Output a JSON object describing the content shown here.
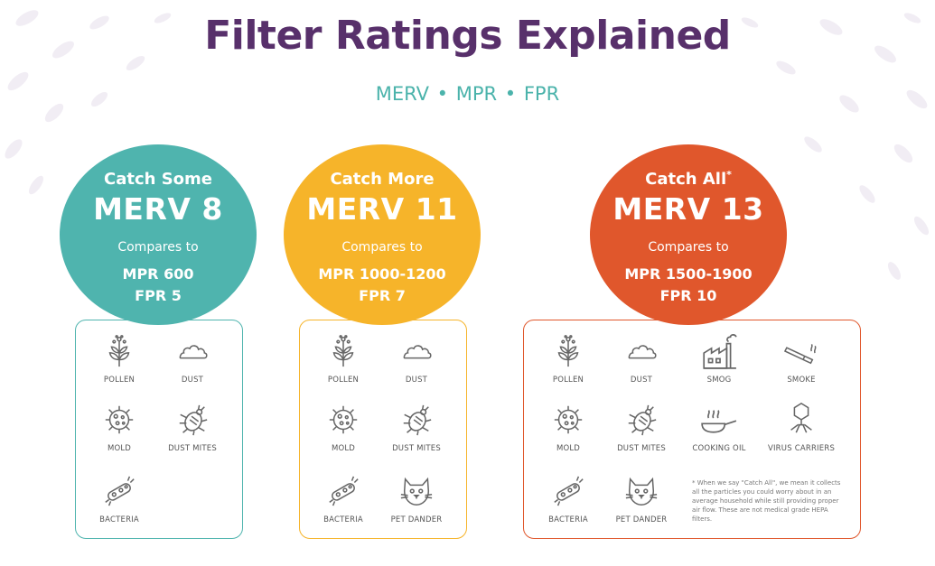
{
  "title": "Filter Ratings Explained",
  "subtitle": "MERV • MPR • FPR",
  "columns": [
    {
      "catch": "Catch Some",
      "merv": "MERV 8",
      "compares": "Compares to",
      "mpr": "MPR 600",
      "fpr": "FPR 5",
      "color": "#4fb4ae",
      "items": [
        "POLLEN",
        "DUST",
        "MOLD",
        "DUST MITES",
        "BACTERIA"
      ]
    },
    {
      "catch": "Catch More",
      "merv": "MERV 11",
      "compares": "Compares to",
      "mpr": "MPR 1000-1200",
      "fpr": "FPR 7",
      "color": "#f6b42a",
      "items": [
        "POLLEN",
        "DUST",
        "MOLD",
        "DUST MITES",
        "BACTERIA",
        "PET DANDER"
      ]
    },
    {
      "catch": "Catch All",
      "catch_mark": "*",
      "merv": "MERV 13",
      "compares": "Compares to",
      "mpr": "MPR 1500-1900",
      "fpr": "FPR 10",
      "color": "#e0572c",
      "items": [
        "POLLEN",
        "DUST",
        "SMOG",
        "SMOKE",
        "MOLD",
        "DUST MITES",
        "COOKING OIL",
        "VIRUS CARRIERS",
        "BACTERIA",
        "PET DANDER"
      ],
      "footnote": "* When we say \"Catch All\", we mean it collects all the particles you could worry about in an average household while still providing proper air flow. These are not medical grade HEPA filters."
    }
  ],
  "icons": {
    "pollen": "pollen-icon",
    "dust": "cloud-icon",
    "mold": "mold-icon",
    "dust_mites": "mite-icon",
    "bacteria": "bacteria-icon",
    "pet_dander": "cat-icon",
    "smog": "factory-icon",
    "smoke": "cigarette-icon",
    "cooking_oil": "pan-icon",
    "virus_carriers": "virus-icon"
  }
}
